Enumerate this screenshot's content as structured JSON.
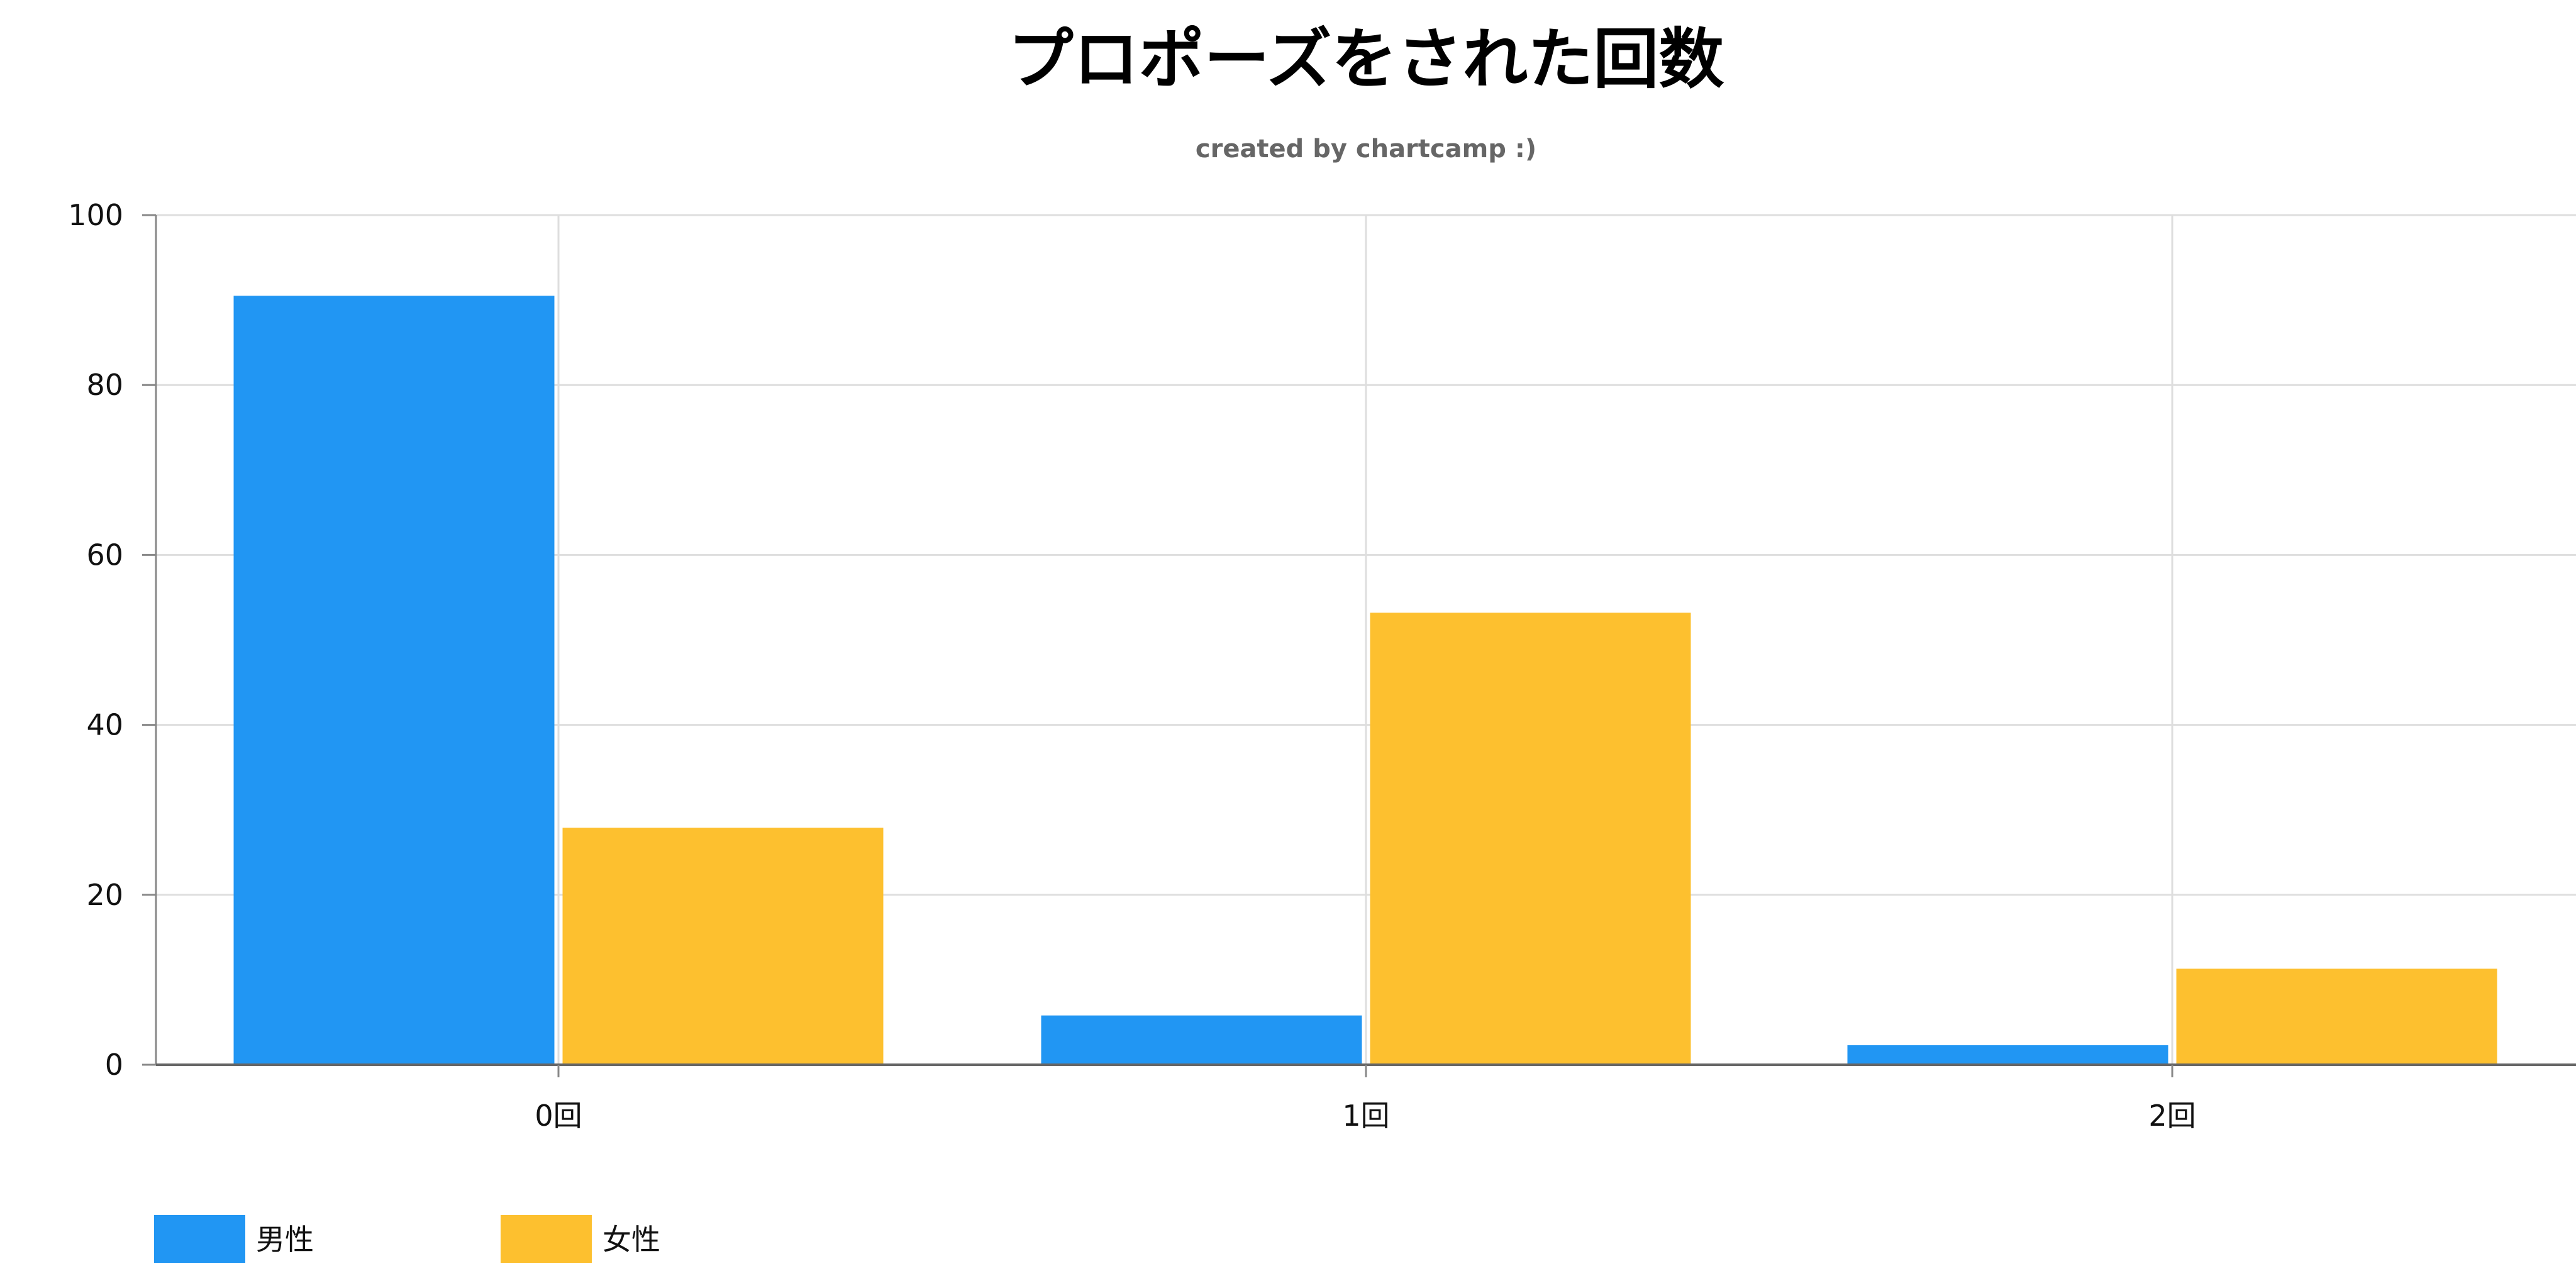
{
  "chart_data": {
    "type": "bar",
    "title": "プロポーズをされた回数",
    "subtitle": "created by chartcamp :)",
    "categories": [
      "0回",
      "1回",
      "2回"
    ],
    "series": [
      {
        "name": "男性",
        "values": [
          90.5,
          5.8,
          2.3
        ],
        "color": "#2196f3"
      },
      {
        "name": "女性",
        "values": [
          27.9,
          53.2,
          11.3
        ],
        "color": "#fdc02f"
      }
    ],
    "yticks": [
      "0",
      "20",
      "40",
      "60",
      "80",
      "100"
    ],
    "ylim": [
      0,
      100
    ],
    "xlabel": "",
    "ylabel": "",
    "grid": true,
    "legend": "bottom-left"
  }
}
